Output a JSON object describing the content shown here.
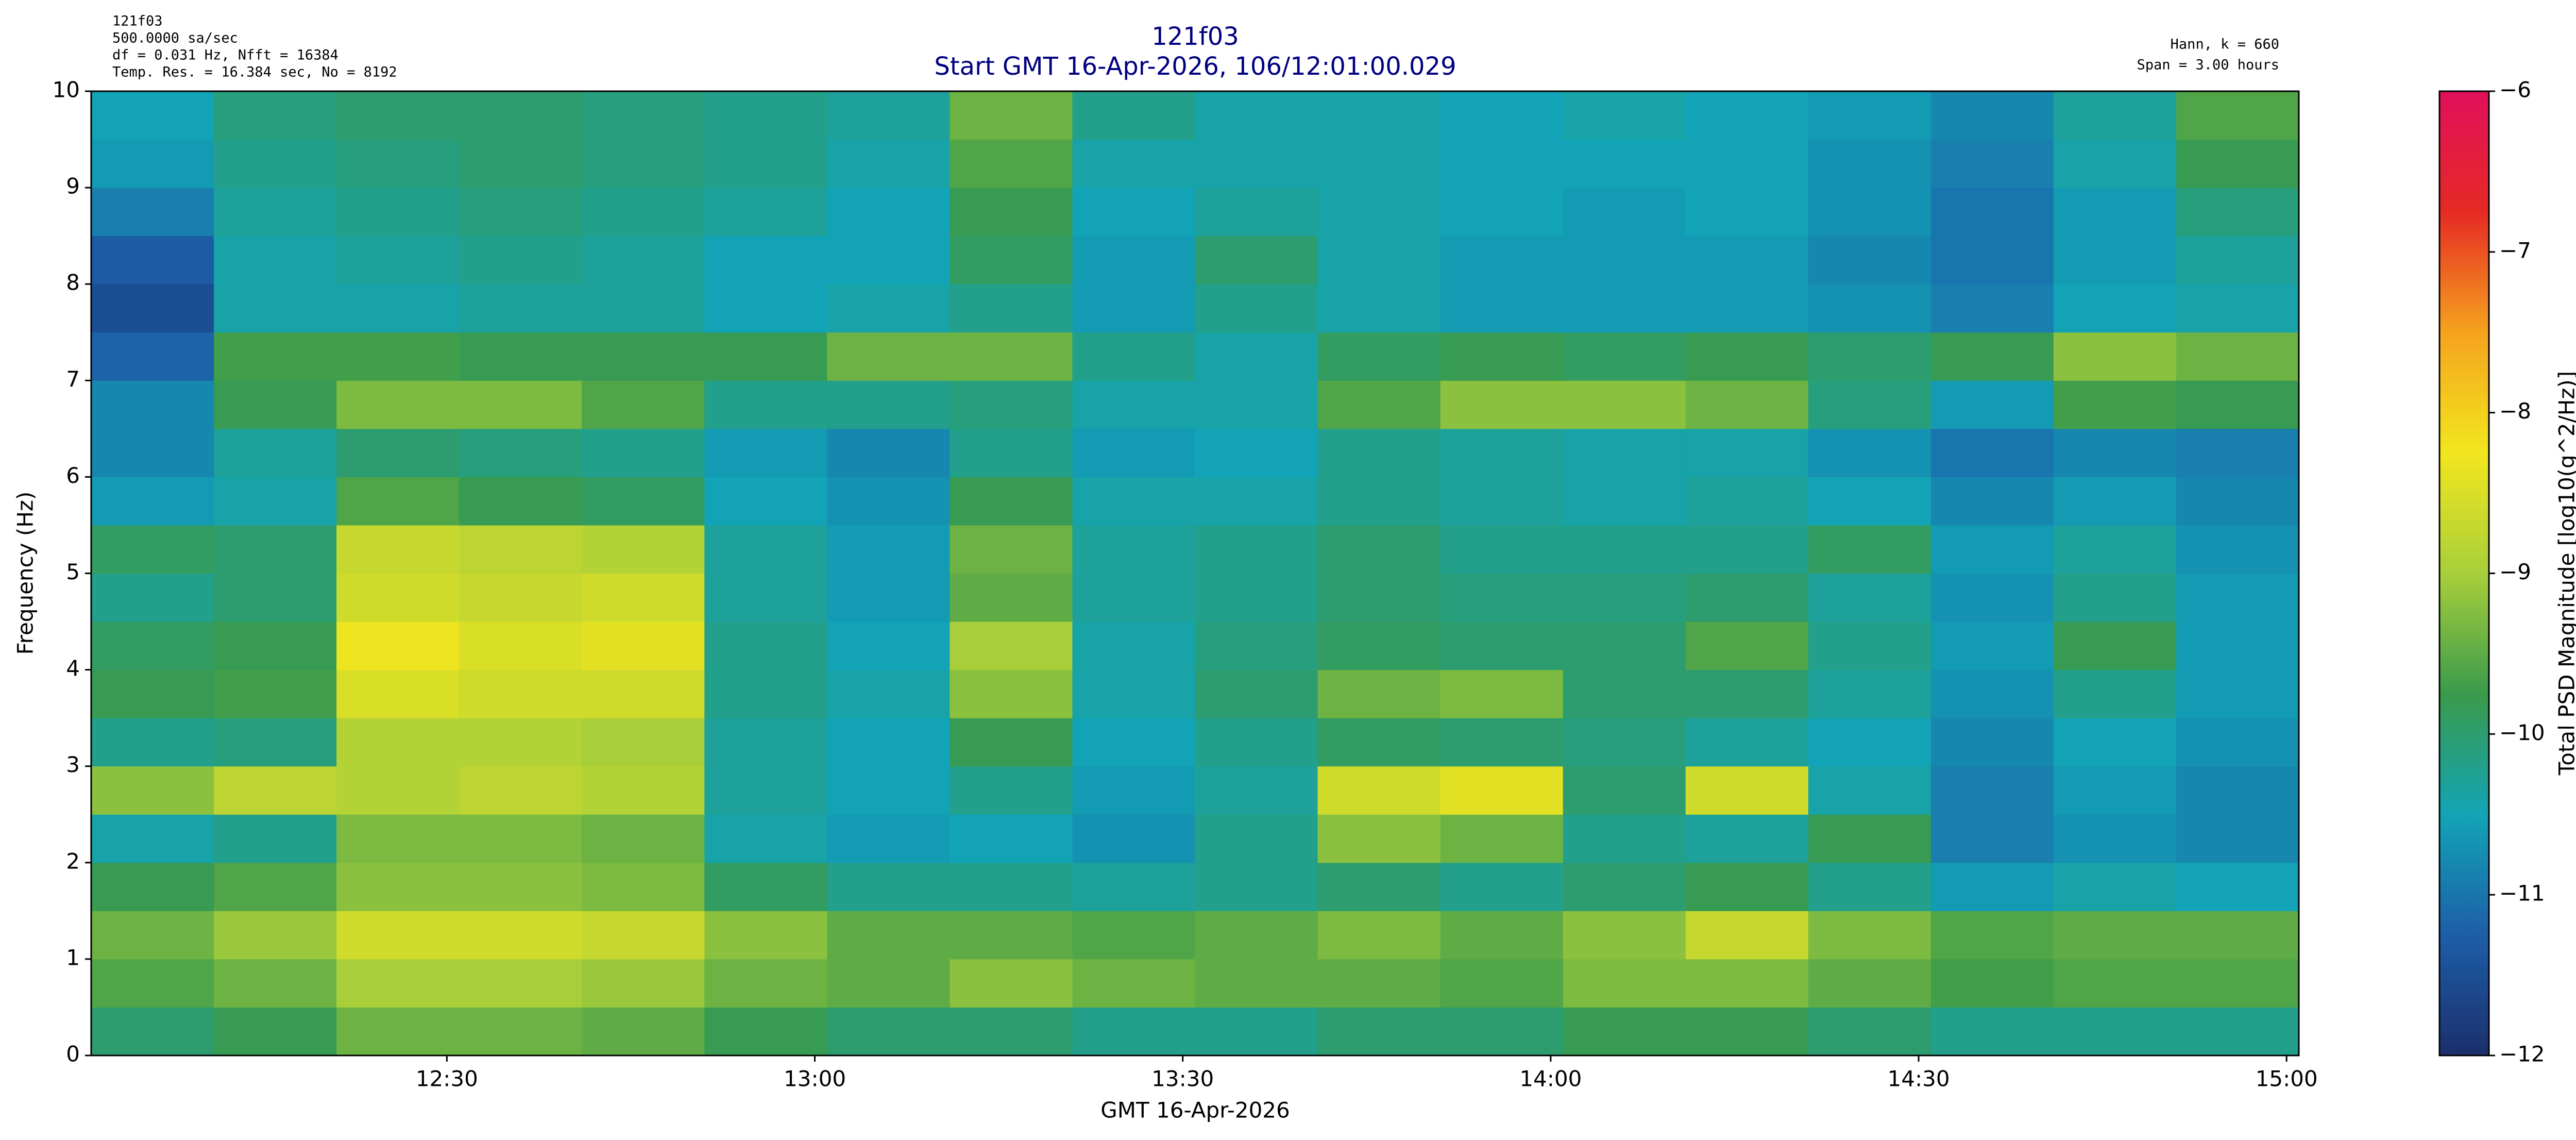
{
  "chart_data": {
    "type": "spectrogram",
    "title": "121f03",
    "subtitle": "Start GMT 16-Apr-2026, 106/12:01:00.029",
    "info_left": [
      "121f03",
      "500.0000 sa/sec",
      "df = 0.031 Hz,  Nfft = 16384",
      "Temp. Res. = 16.384 sec, No = 8192"
    ],
    "info_right": [
      "Hann, k = 660",
      "Span = 3.00 hours"
    ],
    "x_label": "GMT 16-Apr-2026",
    "y_label": "Frequency (Hz)",
    "colorbar_label": "Total PSD Magnitude [log10(g^2/Hz)]",
    "xlim": [
      721,
      901
    ],
    "xticks": [
      {
        "value": 750,
        "label": "12:30"
      },
      {
        "value": 780,
        "label": "13:00"
      },
      {
        "value": 810,
        "label": "13:30"
      },
      {
        "value": 840,
        "label": "14:00"
      },
      {
        "value": 870,
        "label": "14:30"
      },
      {
        "value": 900,
        "label": "15:00"
      }
    ],
    "ylim": [
      0,
      10
    ],
    "yticks": [
      0,
      1,
      2,
      3,
      4,
      5,
      6,
      7,
      8,
      9,
      10
    ],
    "zlim": [
      -12,
      -6
    ],
    "zticks": [
      {
        "value": -12,
        "label": "−12"
      },
      {
        "value": -11,
        "label": "−11"
      },
      {
        "value": -10,
        "label": "−10"
      },
      {
        "value": -9,
        "label": "−9"
      },
      {
        "value": -8,
        "label": "−8"
      },
      {
        "value": -7,
        "label": "−7"
      },
      {
        "value": -6,
        "label": "−6"
      }
    ],
    "colormap": [
      "#1b2f6b",
      "#1d5ea8",
      "#12a4b6",
      "#3a9a4c",
      "#a8cf3a",
      "#f2e61e",
      "#f5a31e",
      "#e52a24",
      "#e0105c"
    ],
    "xbins": [
      721,
      731,
      741,
      751,
      761,
      771,
      781,
      791,
      801,
      811,
      821,
      831,
      841,
      851,
      861,
      871,
      881,
      891,
      901
    ],
    "ybins": [
      0,
      0.5,
      1,
      1.5,
      2,
      2.5,
      3,
      3.5,
      4,
      4.5,
      5,
      5.5,
      6,
      6.5,
      7,
      7.5,
      8,
      8.5,
      9,
      9.5,
      10
    ],
    "values": [
      [
        -10,
        -9.8,
        -9.4,
        -9.4,
        -9.5,
        -9.8,
        -10,
        -10,
        -10.2,
        -10.2,
        -10,
        -10,
        -9.8,
        -9.8,
        -10,
        -10.2,
        -10.2,
        -10.2
      ],
      [
        -9.6,
        -9.4,
        -9,
        -9,
        -9.1,
        -9.4,
        -9.5,
        -9.2,
        -9.4,
        -9.5,
        -9.5,
        -9.6,
        -9.3,
        -9.3,
        -9.5,
        -9.7,
        -9.6,
        -9.6
      ],
      [
        -9.4,
        -9.1,
        -8.6,
        -8.6,
        -8.7,
        -9.2,
        -9.5,
        -9.5,
        -9.6,
        -9.5,
        -9.3,
        -9.5,
        -9.2,
        -8.7,
        -9.3,
        -9.6,
        -9.5,
        -9.5
      ],
      [
        -9.8,
        -9.6,
        -9.2,
        -9.2,
        -9.3,
        -9.9,
        -10.2,
        -10.2,
        -10.3,
        -10.2,
        -10,
        -10.2,
        -10,
        -9.8,
        -10.2,
        -10.6,
        -10.4,
        -10.5
      ],
      [
        -10.4,
        -10.2,
        -9.3,
        -9.3,
        -9.4,
        -10.4,
        -10.6,
        -10.5,
        -10.7,
        -10.2,
        -9.2,
        -9.4,
        -10.2,
        -10.3,
        -9.8,
        -10.9,
        -10.7,
        -10.8
      ],
      [
        -9.2,
        -8.8,
        -8.9,
        -8.8,
        -8.9,
        -10.3,
        -10.5,
        -10.2,
        -10.6,
        -10.3,
        -8.6,
        -8.4,
        -10,
        -8.6,
        -10.4,
        -10.9,
        -10.6,
        -10.8
      ],
      [
        -10.2,
        -10.1,
        -8.9,
        -8.9,
        -9,
        -10.3,
        -10.5,
        -9.8,
        -10.5,
        -10.2,
        -9.9,
        -10,
        -10.1,
        -10.3,
        -10.5,
        -10.8,
        -10.5,
        -10.7
      ],
      [
        -9.8,
        -9.7,
        -8.5,
        -8.6,
        -8.6,
        -10.2,
        -10.4,
        -9.2,
        -10.4,
        -10,
        -9.4,
        -9.3,
        -10,
        -10,
        -10.3,
        -10.7,
        -10.2,
        -10.6
      ],
      [
        -9.9,
        -9.8,
        -8.3,
        -8.5,
        -8.4,
        -10.2,
        -10.5,
        -9,
        -10.4,
        -10.1,
        -9.9,
        -10,
        -10,
        -9.6,
        -10.2,
        -10.6,
        -9.8,
        -10.6
      ],
      [
        -10.2,
        -10,
        -8.6,
        -8.7,
        -8.6,
        -10.3,
        -10.6,
        -9.5,
        -10.3,
        -10.2,
        -10,
        -10.1,
        -10.1,
        -10,
        -10.3,
        -10.7,
        -10.2,
        -10.6
      ],
      [
        -9.9,
        -10,
        -8.7,
        -8.8,
        -8.9,
        -10.3,
        -10.6,
        -9.4,
        -10.3,
        -10.2,
        -10,
        -10.2,
        -10.2,
        -10.2,
        -9.9,
        -10.6,
        -10.3,
        -10.7
      ],
      [
        -10.6,
        -10.4,
        -9.6,
        -9.8,
        -9.9,
        -10.5,
        -10.7,
        -9.8,
        -10.4,
        -10.4,
        -10.2,
        -10.3,
        -10.4,
        -10.3,
        -10.5,
        -10.8,
        -10.6,
        -10.8
      ],
      [
        -10.8,
        -10.3,
        -10,
        -10.1,
        -10.2,
        -10.6,
        -10.8,
        -10.2,
        -10.6,
        -10.5,
        -10.2,
        -10.3,
        -10.4,
        -10.4,
        -10.7,
        -11,
        -10.8,
        -10.9
      ],
      [
        -10.8,
        -9.8,
        -9.3,
        -9.3,
        -9.6,
        -10.2,
        -10.2,
        -10.1,
        -10.4,
        -10.4,
        -9.6,
        -9.2,
        -9.2,
        -9.4,
        -10.1,
        -10.6,
        -9.7,
        -9.8
      ],
      [
        -11.2,
        -9.7,
        -9.7,
        -9.8,
        -9.8,
        -9.8,
        -9.4,
        -9.4,
        -10.2,
        -10.4,
        -9.9,
        -9.8,
        -9.9,
        -9.8,
        -10,
        -9.8,
        -9.2,
        -9.4
      ],
      [
        -11.5,
        -10.4,
        -10.4,
        -10.3,
        -10.3,
        -10.5,
        -10.4,
        -10.2,
        -10.6,
        -10.2,
        -10.4,
        -10.6,
        -10.6,
        -10.6,
        -10.7,
        -10.9,
        -10.5,
        -10.4
      ],
      [
        -11.3,
        -10.4,
        -10.3,
        -10.2,
        -10.3,
        -10.5,
        -10.5,
        -9.9,
        -10.6,
        -10,
        -10.4,
        -10.6,
        -10.6,
        -10.6,
        -10.8,
        -11,
        -10.6,
        -10.3
      ],
      [
        -10.9,
        -10.3,
        -10.2,
        -10.1,
        -10.2,
        -10.3,
        -10.5,
        -9.8,
        -10.5,
        -10.3,
        -10.4,
        -10.5,
        -10.6,
        -10.5,
        -10.7,
        -11,
        -10.6,
        -10.1
      ],
      [
        -10.6,
        -10.2,
        -10.1,
        -10,
        -10.1,
        -10.2,
        -10.4,
        -9.6,
        -10.4,
        -10.4,
        -10.4,
        -10.5,
        -10.5,
        -10.5,
        -10.7,
        -10.9,
        -10.4,
        -9.8
      ],
      [
        -10.5,
        -10.1,
        -10,
        -10,
        -10.1,
        -10.2,
        -10.3,
        -9.4,
        -10.2,
        -10.4,
        -10.4,
        -10.5,
        -10.4,
        -10.5,
        -10.6,
        -10.8,
        -10.3,
        -9.6
      ]
    ]
  }
}
